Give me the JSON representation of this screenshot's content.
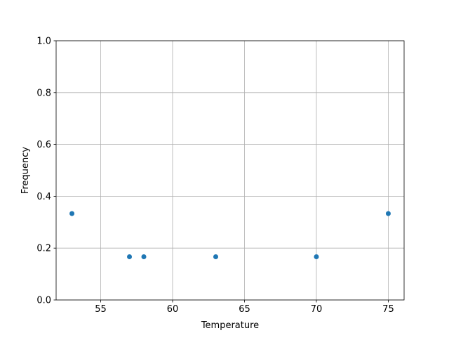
{
  "chart_data": {
    "type": "scatter",
    "title": "",
    "xlabel": "Temperature",
    "ylabel": "Frequency",
    "x": [
      53,
      57,
      58,
      63,
      70,
      75
    ],
    "y": [
      0.3333,
      0.1667,
      0.1667,
      0.1667,
      0.1667,
      0.3333
    ],
    "xlim": [
      51.9,
      76.1
    ],
    "ylim": [
      0.0,
      1.0
    ],
    "xticks": [
      55,
      60,
      65,
      70,
      75
    ],
    "xtick_labels": [
      "55",
      "60",
      "65",
      "70",
      "75"
    ],
    "yticks": [
      0.0,
      0.2,
      0.4,
      0.6,
      0.8,
      1.0
    ],
    "ytick_labels": [
      "0.0",
      "0.2",
      "0.4",
      "0.6",
      "0.8",
      "1.0"
    ],
    "grid": true,
    "marker_color": "#1f77b4"
  }
}
